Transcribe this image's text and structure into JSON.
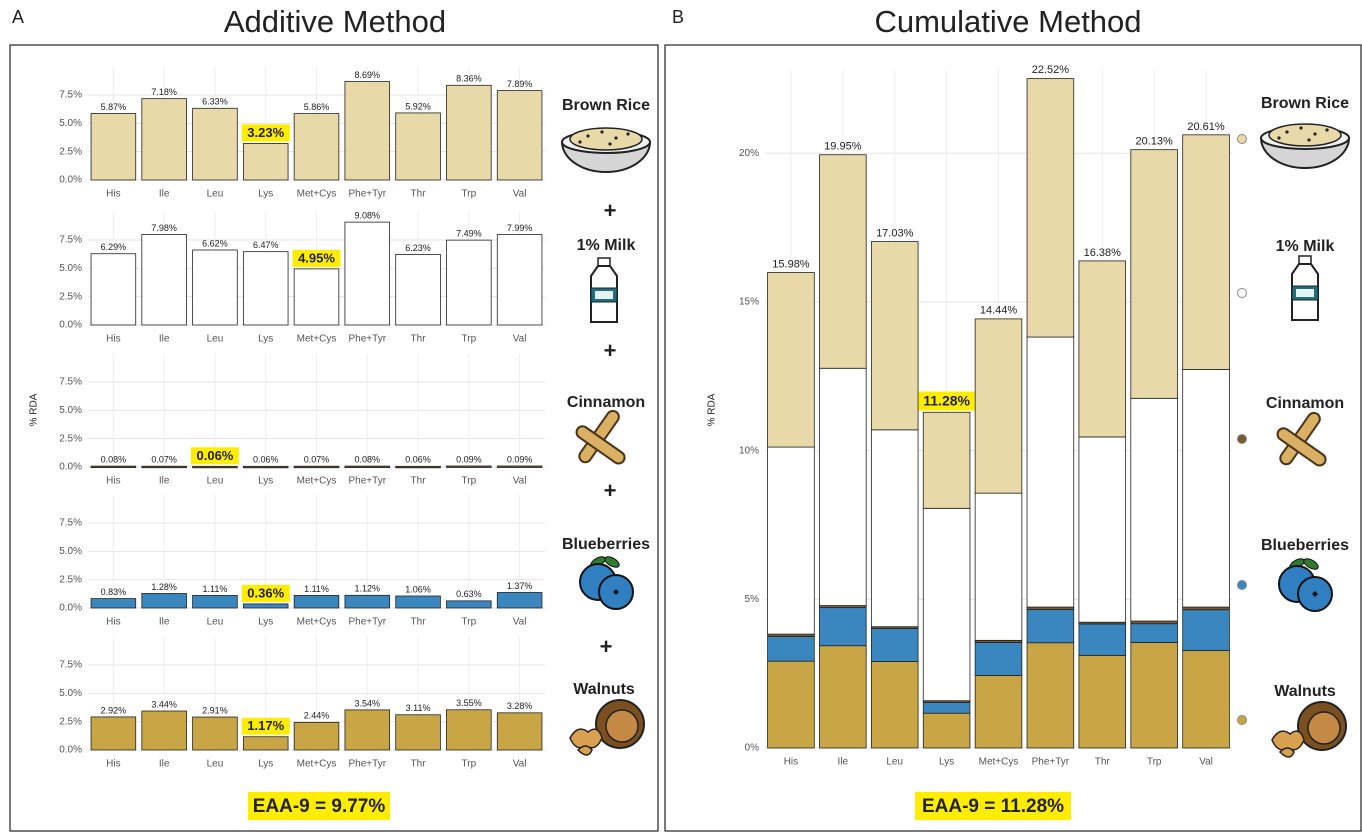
{
  "panels": [
    {
      "letter": "A",
      "title": "Additive Method",
      "y_label": "% RDA",
      "joiner": "+",
      "summary": "EAA-9 = 9.77%"
    },
    {
      "letter": "B",
      "title": "Cumulative Method",
      "y_label": "% RDA",
      "summary": "EAA-9 = 11.28%"
    }
  ],
  "chart_data": [
    {
      "type": "bar",
      "title": "Brown Rice",
      "color": "#e8d9a8",
      "categories": [
        "His",
        "Ile",
        "Leu",
        "Lys",
        "Met+Cys",
        "Phe+Tyr",
        "Thr",
        "Trp",
        "Val"
      ],
      "values": [
        5.87,
        7.18,
        6.33,
        3.23,
        5.86,
        8.69,
        5.92,
        8.36,
        7.89
      ],
      "value_labels": [
        "5.87%",
        "7.18%",
        "6.33%",
        "3.23%",
        "5.86%",
        "8.69%",
        "5.92%",
        "8.36%",
        "7.89%"
      ],
      "highlight_index": 3,
      "highlight_color": "#ffed00",
      "ylim": [
        0,
        10
      ],
      "yticks": [
        {
          "value": 0,
          "label": "0.0%"
        },
        {
          "value": 2.5,
          "label": "2.5%"
        },
        {
          "value": 5,
          "label": "5.0%"
        },
        {
          "value": 7.5,
          "label": "7.5%"
        }
      ],
      "grid": true
    },
    {
      "type": "bar",
      "title": "1% Milk",
      "color": "#ffffff",
      "categories": [
        "His",
        "Ile",
        "Leu",
        "Lys",
        "Met+Cys",
        "Phe+Tyr",
        "Thr",
        "Trp",
        "Val"
      ],
      "values": [
        6.29,
        7.98,
        6.62,
        6.47,
        4.95,
        9.08,
        6.23,
        7.49,
        7.99
      ],
      "value_labels": [
        "6.29%",
        "7.98%",
        "6.62%",
        "6.47%",
        "4.95%",
        "9.08%",
        "6.23%",
        "7.49%",
        "7.99%"
      ],
      "highlight_index": 4,
      "highlight_color": "#ffed00",
      "ylim": [
        0,
        10
      ],
      "yticks": [
        {
          "value": 0,
          "label": "0.0%"
        },
        {
          "value": 2.5,
          "label": "2.5%"
        },
        {
          "value": 5,
          "label": "5.0%"
        },
        {
          "value": 7.5,
          "label": "7.5%"
        }
      ],
      "grid": true
    },
    {
      "type": "bar",
      "title": "Cinnamon",
      "color": "#7a5a30",
      "categories": [
        "His",
        "Ile",
        "Leu",
        "Lys",
        "Met+Cys",
        "Phe+Tyr",
        "Thr",
        "Trp",
        "Val"
      ],
      "values": [
        0.08,
        0.07,
        0.06,
        0.06,
        0.07,
        0.08,
        0.06,
        0.09,
        0.09
      ],
      "value_labels": [
        "0.08%",
        "0.07%",
        "0.06%",
        "0.06%",
        "0.07%",
        "0.08%",
        "0.06%",
        "0.09%",
        "0.09%"
      ],
      "highlight_index": 2,
      "highlight_color": "#ffed00",
      "ylim": [
        0,
        10
      ],
      "yticks": [
        {
          "value": 0,
          "label": "0.0%"
        },
        {
          "value": 2.5,
          "label": "2.5%"
        },
        {
          "value": 5,
          "label": "5.0%"
        },
        {
          "value": 7.5,
          "label": "7.5%"
        }
      ],
      "grid": true
    },
    {
      "type": "bar",
      "title": "Blueberries",
      "color": "#3a87c0",
      "categories": [
        "His",
        "Ile",
        "Leu",
        "Lys",
        "Met+Cys",
        "Phe+Tyr",
        "Thr",
        "Trp",
        "Val"
      ],
      "values": [
        0.83,
        1.28,
        1.11,
        0.36,
        1.11,
        1.12,
        1.06,
        0.63,
        1.37
      ],
      "value_labels": [
        "0.83%",
        "1.28%",
        "1.11%",
        "0.36%",
        "1.11%",
        "1.12%",
        "1.06%",
        "0.63%",
        "1.37%"
      ],
      "highlight_index": 3,
      "highlight_color": "#ffed00",
      "ylim": [
        0,
        10
      ],
      "yticks": [
        {
          "value": 0,
          "label": "0.0%"
        },
        {
          "value": 2.5,
          "label": "2.5%"
        },
        {
          "value": 5,
          "label": "5.0%"
        },
        {
          "value": 7.5,
          "label": "7.5%"
        }
      ],
      "grid": true
    },
    {
      "type": "bar",
      "title": "Walnuts",
      "color": "#c9a645",
      "categories": [
        "His",
        "Ile",
        "Leu",
        "Lys",
        "Met+Cys",
        "Phe+Tyr",
        "Thr",
        "Trp",
        "Val"
      ],
      "values": [
        2.92,
        3.44,
        2.91,
        1.17,
        2.44,
        3.54,
        3.11,
        3.55,
        3.28
      ],
      "value_labels": [
        "2.92%",
        "3.44%",
        "2.91%",
        "1.17%",
        "2.44%",
        "3.54%",
        "3.11%",
        "3.55%",
        "3.28%"
      ],
      "highlight_index": 3,
      "highlight_color": "#ffed00",
      "ylim": [
        0,
        10
      ],
      "yticks": [
        {
          "value": 0,
          "label": "0.0%"
        },
        {
          "value": 2.5,
          "label": "2.5%"
        },
        {
          "value": 5,
          "label": "5.0%"
        },
        {
          "value": 7.5,
          "label": "7.5%"
        }
      ],
      "grid": true
    },
    {
      "type": "stacked_bar",
      "categories": [
        "His",
        "Ile",
        "Leu",
        "Lys",
        "Met+Cys",
        "Phe+Tyr",
        "Thr",
        "Trp",
        "Val"
      ],
      "series": [
        {
          "name": "Brown Rice",
          "color": "#e8d9a8",
          "values": [
            5.87,
            7.18,
            6.33,
            3.23,
            5.86,
            8.69,
            5.92,
            8.36,
            7.89
          ]
        },
        {
          "name": "1% Milk",
          "color": "#ffffff",
          "values": [
            6.29,
            7.98,
            6.62,
            6.47,
            4.95,
            9.08,
            6.23,
            7.49,
            7.99
          ]
        },
        {
          "name": "Cinnamon",
          "color": "#7a5a30",
          "values": [
            0.08,
            0.07,
            0.06,
            0.06,
            0.07,
            0.08,
            0.06,
            0.09,
            0.09
          ]
        },
        {
          "name": "Blueberries",
          "color": "#3a87c0",
          "values": [
            0.83,
            1.28,
            1.11,
            0.36,
            1.11,
            1.12,
            1.06,
            0.63,
            1.37
          ]
        },
        {
          "name": "Walnuts",
          "color": "#c9a645",
          "values": [
            2.92,
            3.44,
            2.91,
            1.17,
            2.44,
            3.54,
            3.11,
            3.55,
            3.28
          ]
        }
      ],
      "totals": [
        15.98,
        19.95,
        17.03,
        11.28,
        14.44,
        22.52,
        16.38,
        20.13,
        20.61
      ],
      "total_labels": [
        "15.98%",
        "19.95%",
        "17.03%",
        "11.28%",
        "14.44%",
        "22.52%",
        "16.38%",
        "20.13%",
        "20.61%"
      ],
      "highlight_index": 3,
      "highlight_color": "#ffed00",
      "ylim": [
        0,
        22.8
      ],
      "yticks": [
        {
          "value": 0,
          "label": "0%"
        },
        {
          "value": 5,
          "label": "5%"
        },
        {
          "value": 10,
          "label": "10%"
        },
        {
          "value": 15,
          "label": "15%"
        },
        {
          "value": 20,
          "label": "20%"
        }
      ],
      "grid": true
    }
  ]
}
